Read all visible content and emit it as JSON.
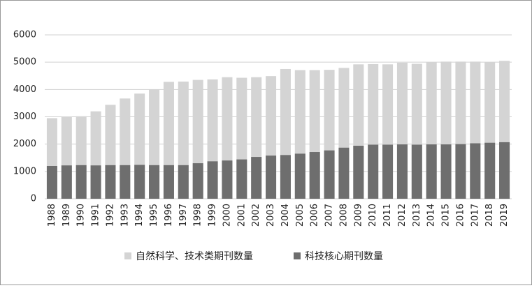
{
  "chart_data": {
    "type": "bar",
    "categories": [
      "1988",
      "1989",
      "1990",
      "1991",
      "1992",
      "1993",
      "1994",
      "1995",
      "1996",
      "1997",
      "1998",
      "1999",
      "2000",
      "2001",
      "2002",
      "2003",
      "2004",
      "2005",
      "2006",
      "2007",
      "2008",
      "2009",
      "2010",
      "2011",
      "2012",
      "2013",
      "2014",
      "2015",
      "2016",
      "2017",
      "2018",
      "2019"
    ],
    "series": [
      {
        "name": "自然科学、技术类期刊数量",
        "color": "#d4d4d4",
        "values": [
          2950,
          3000,
          3020,
          3200,
          3440,
          3670,
          3850,
          4000,
          4280,
          4290,
          4350,
          4370,
          4450,
          4430,
          4450,
          4490,
          4750,
          4710,
          4710,
          4720,
          4790,
          4920,
          4930,
          4920,
          4980,
          4940,
          5000,
          5020,
          5020,
          5020,
          4990,
          5050
        ]
      },
      {
        "name": "科技核心期刊数量",
        "color": "#6e6e6e",
        "values": [
          1200,
          1220,
          1230,
          1220,
          1230,
          1230,
          1240,
          1230,
          1230,
          1230,
          1300,
          1370,
          1400,
          1440,
          1530,
          1580,
          1600,
          1650,
          1710,
          1770,
          1870,
          1940,
          1980,
          1980,
          1990,
          1980,
          1990,
          1990,
          2000,
          2030,
          2050,
          2070
        ]
      }
    ],
    "ylim": [
      0,
      6000
    ],
    "yticks": [
      0,
      1000,
      2000,
      3000,
      4000,
      5000,
      6000
    ],
    "grid": true
  }
}
